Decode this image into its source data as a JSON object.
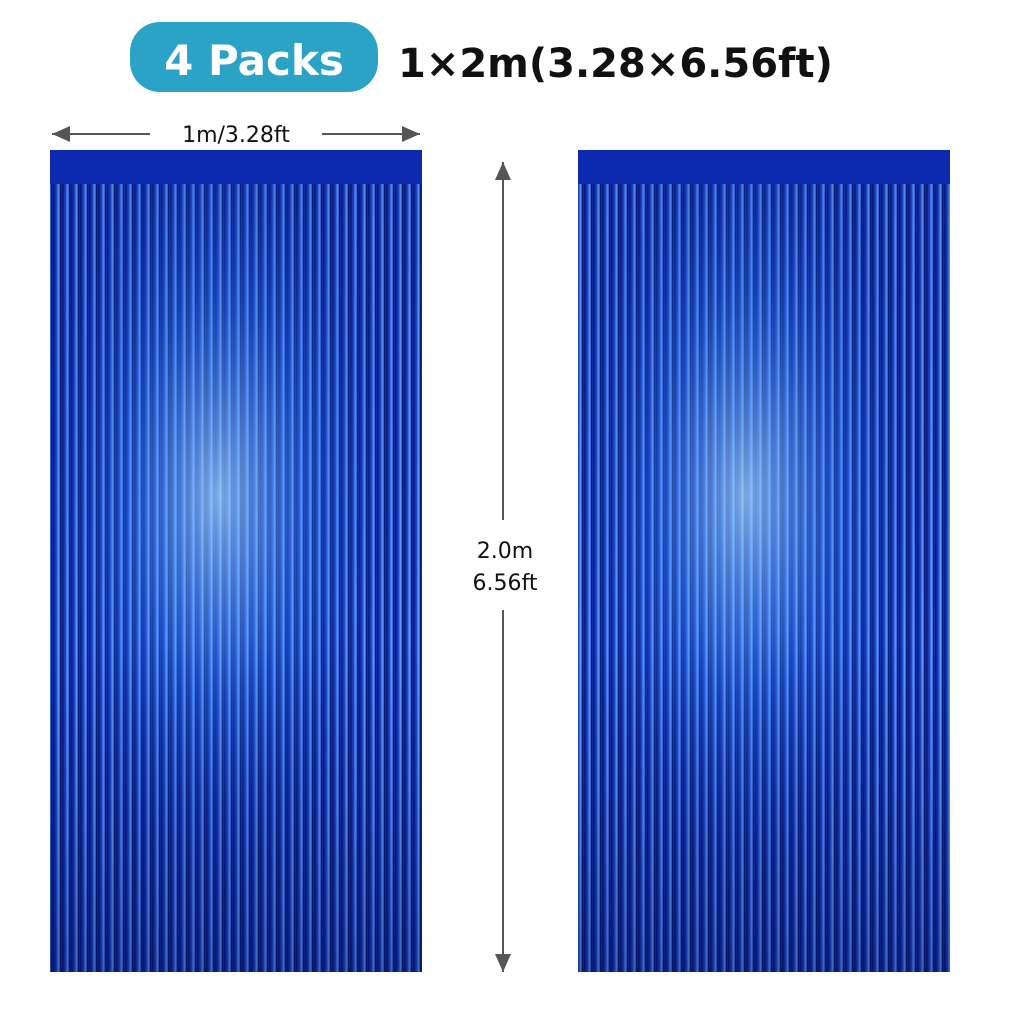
{
  "header": {
    "badge": "4 Packs",
    "size": "1×2m(3.28×6.56ft)"
  },
  "dimensions": {
    "width": "1m/3.28ft",
    "height": [
      "2.0m",
      "6.56ft"
    ]
  }
}
